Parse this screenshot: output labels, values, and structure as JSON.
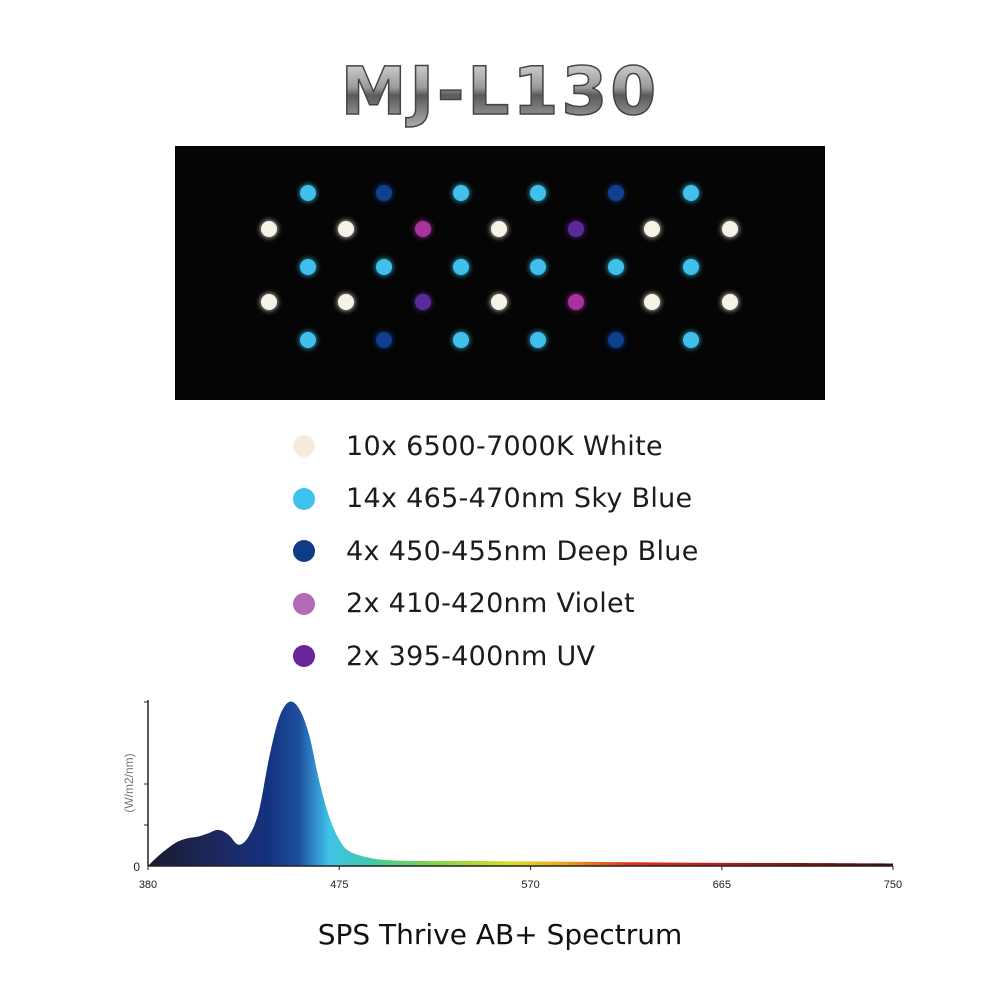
{
  "product": {
    "title": "MJ-L130"
  },
  "led_panel": {
    "colors": {
      "white": "#f6f2e6",
      "sky_blue": "#3fc0ea",
      "deep_blue": "#0f3f8f",
      "violet": "#a8329e",
      "uv": "#5b2a9a"
    },
    "rows": [
      [
        "sky_blue",
        "deep_blue",
        "sky_blue",
        "sky_blue",
        "deep_blue",
        "sky_blue"
      ],
      [
        "white",
        "white",
        "violet",
        "white",
        "uv",
        "white",
        "white"
      ],
      [
        "sky_blue",
        "sky_blue",
        "sky_blue",
        "sky_blue",
        "sky_blue",
        "sky_blue"
      ],
      [
        "white",
        "white",
        "uv",
        "white",
        "violet",
        "white",
        "white"
      ],
      [
        "sky_blue",
        "deep_blue",
        "sky_blue",
        "sky_blue",
        "deep_blue",
        "sky_blue"
      ]
    ]
  },
  "legend": [
    {
      "label": "10x 6500-7000K White",
      "color": "#f5ecdc"
    },
    {
      "label": "14x 465-470nm Sky Blue",
      "color": "#3ec3ef"
    },
    {
      "label": "4x 450-455nm Deep Blue",
      "color": "#103b86"
    },
    {
      "label": "2x 410-420nm Violet",
      "color": "#b26bb3"
    },
    {
      "label": "2x 395-400nm UV",
      "color": "#6a2598"
    }
  ],
  "chart_data": {
    "type": "area",
    "title": "SPS Thrive AB+ Spectrum",
    "xlabel": "",
    "ylabel": "(W/m2/nm)",
    "xlim": [
      380,
      750
    ],
    "xticks": [
      "380",
      "475",
      "570",
      "665",
      "750"
    ],
    "yticks": [
      "0"
    ],
    "ylim": [
      0,
      1
    ],
    "grid": false,
    "legend": "none",
    "x": [
      380,
      385,
      390,
      395,
      400,
      405,
      410,
      415,
      420,
      425,
      430,
      435,
      440,
      445,
      450,
      455,
      460,
      465,
      470,
      475,
      480,
      490,
      500,
      520,
      550,
      600,
      650,
      700,
      750
    ],
    "y": [
      0.0,
      0.06,
      0.11,
      0.15,
      0.17,
      0.18,
      0.2,
      0.22,
      0.19,
      0.13,
      0.18,
      0.33,
      0.65,
      0.9,
      1.0,
      0.96,
      0.8,
      0.52,
      0.3,
      0.16,
      0.09,
      0.05,
      0.035,
      0.03,
      0.03,
      0.025,
      0.02,
      0.018,
      0.015
    ]
  }
}
